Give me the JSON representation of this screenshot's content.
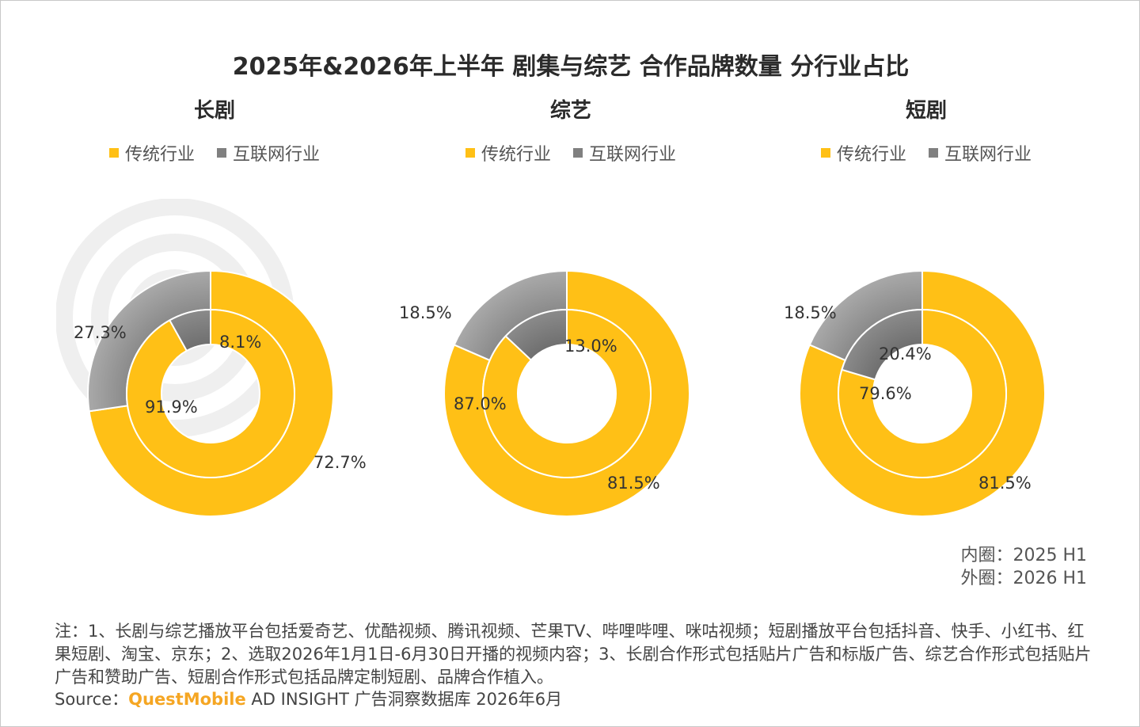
{
  "title": "2025年&2026年上半年 剧集与综艺 合作品牌数量 分行业占比",
  "legend": [
    {
      "label": "传统行业",
      "color": "#FFC016"
    },
    {
      "label": "互联网行业",
      "color": "#808080"
    }
  ],
  "ring_note": {
    "inner": "内圈：2025 H1",
    "outer": "外圈：2026 H1"
  },
  "note": "注：1、长剧与综艺播放平台包括爱奇艺、优酷视频、腾讯视频、芒果TV、哔哩哔哩、咪咕视频；短剧播放平台包括抖音、快手、小红书、红果短剧、淘宝、京东；2、选取2026年1月1日-6月30日开播的视频内容；3、长剧合作形式包括贴片广告和标版广告、综艺合作形式包括贴片广告和赞助广告、短剧合作形式包括品牌定制短剧、品牌合作植入。",
  "source": {
    "prefix": "Source：",
    "brand": "QuestMobile",
    "suffix": " AD INSIGHT 广告洞察数据库 2026年6月"
  },
  "chart_data": [
    {
      "type": "pie",
      "title": "长剧",
      "categories": [
        "传统行业",
        "互联网行业"
      ],
      "series": [
        {
          "name": "外圈：2026 H1",
          "values": [
            72.7,
            27.3
          ],
          "labels": [
            "72.7%",
            "27.3%"
          ]
        },
        {
          "name": "内圈：2025 H1",
          "values": [
            91.9,
            8.1
          ],
          "labels": [
            "91.9%",
            "8.1%"
          ]
        }
      ]
    },
    {
      "type": "pie",
      "title": "综艺",
      "categories": [
        "传统行业",
        "互联网行业"
      ],
      "series": [
        {
          "name": "外圈：2026 H1",
          "values": [
            81.5,
            18.5
          ],
          "labels": [
            "81.5%",
            "18.5%"
          ]
        },
        {
          "name": "内圈：2025 H1",
          "values": [
            87.0,
            13.0
          ],
          "labels": [
            "87.0%",
            "13.0%"
          ]
        }
      ]
    },
    {
      "type": "pie",
      "title": "短剧",
      "categories": [
        "传统行业",
        "互联网行业"
      ],
      "series": [
        {
          "name": "外圈：2026 H1",
          "values": [
            81.5,
            18.5
          ],
          "labels": [
            "81.5%",
            "18.5%"
          ]
        },
        {
          "name": "内圈：2025 H1",
          "values": [
            79.6,
            20.4
          ],
          "labels": [
            "79.6%",
            "20.4%"
          ]
        }
      ]
    }
  ]
}
